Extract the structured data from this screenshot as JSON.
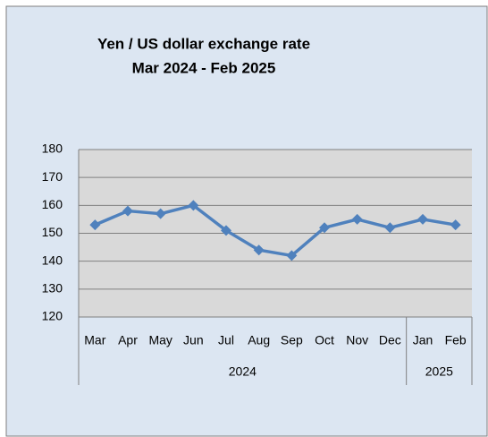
{
  "chart_data": {
    "type": "line",
    "title": "Yen / US dollar exchange rate",
    "subtitle": "Mar 2024  -  Feb 2025",
    "categories": [
      "Mar",
      "Apr",
      "May",
      "Jun",
      "Jul",
      "Aug",
      "Sep",
      "Oct",
      "Nov",
      "Dec",
      "Jan",
      "Feb"
    ],
    "groups": [
      {
        "label": "2024",
        "span": 10
      },
      {
        "label": "2025",
        "span": 2
      }
    ],
    "values": [
      153,
      158,
      157,
      160,
      151,
      144,
      142,
      152,
      155,
      152,
      155,
      153
    ],
    "color": "#4f81bd",
    "ylim": [
      120,
      180
    ],
    "yticks": [
      120,
      130,
      140,
      150,
      160,
      170,
      180
    ],
    "grid": true
  }
}
